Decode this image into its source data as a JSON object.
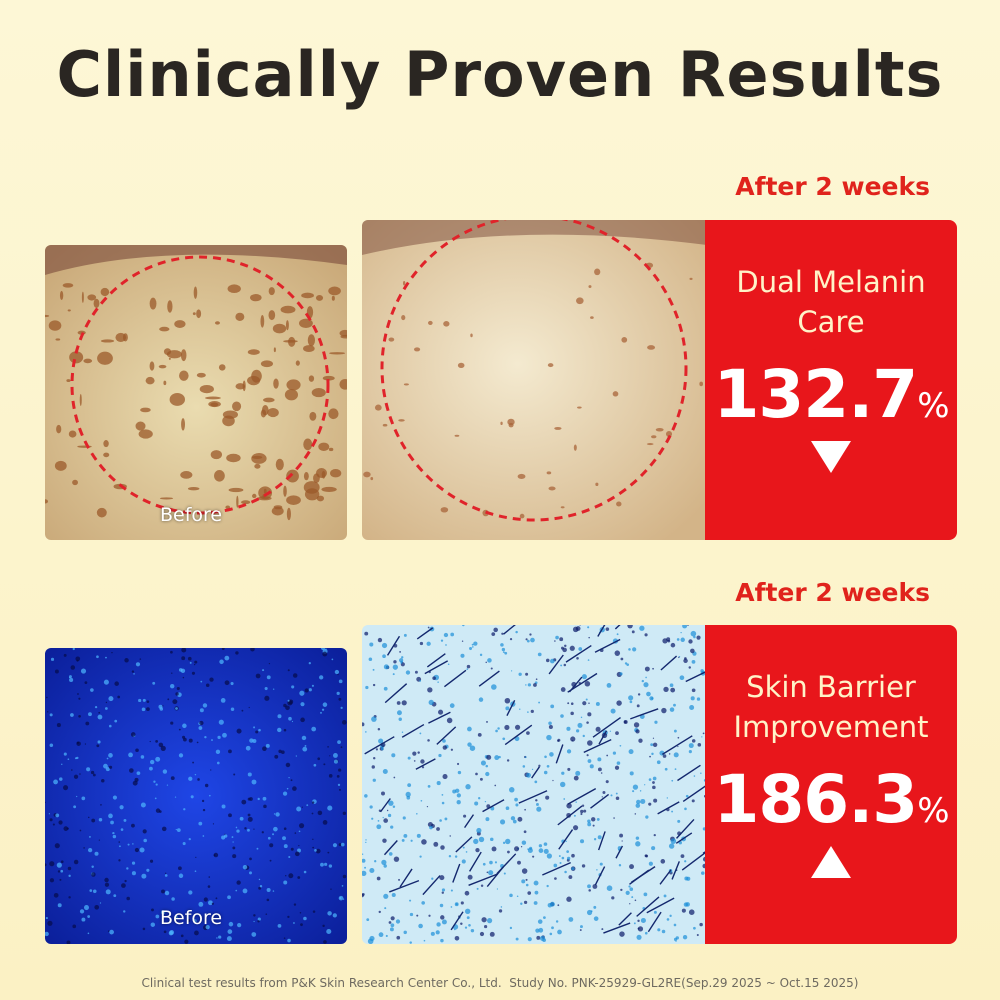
{
  "header": {
    "title": "Clinically Proven Results"
  },
  "panels": [
    {
      "period": "After 2 weeks",
      "before_label": "Before",
      "name_lines": [
        "Dual Melanin",
        "Care"
      ],
      "value": "132.7",
      "unit": "%"
    },
    {
      "period": "After 2 weeks",
      "before_label": "Before",
      "name_lines": [
        "Skin Barrier",
        "Improvement"
      ],
      "value": "186.3",
      "unit": "%"
    }
  ],
  "footer": {
    "note": "Clinical test results from P&K Skin Research Center Co., Ltd.  Study No. PNK-25929-GL2RE(Sep.29 2025 ~ Oct.15 2025)"
  }
}
